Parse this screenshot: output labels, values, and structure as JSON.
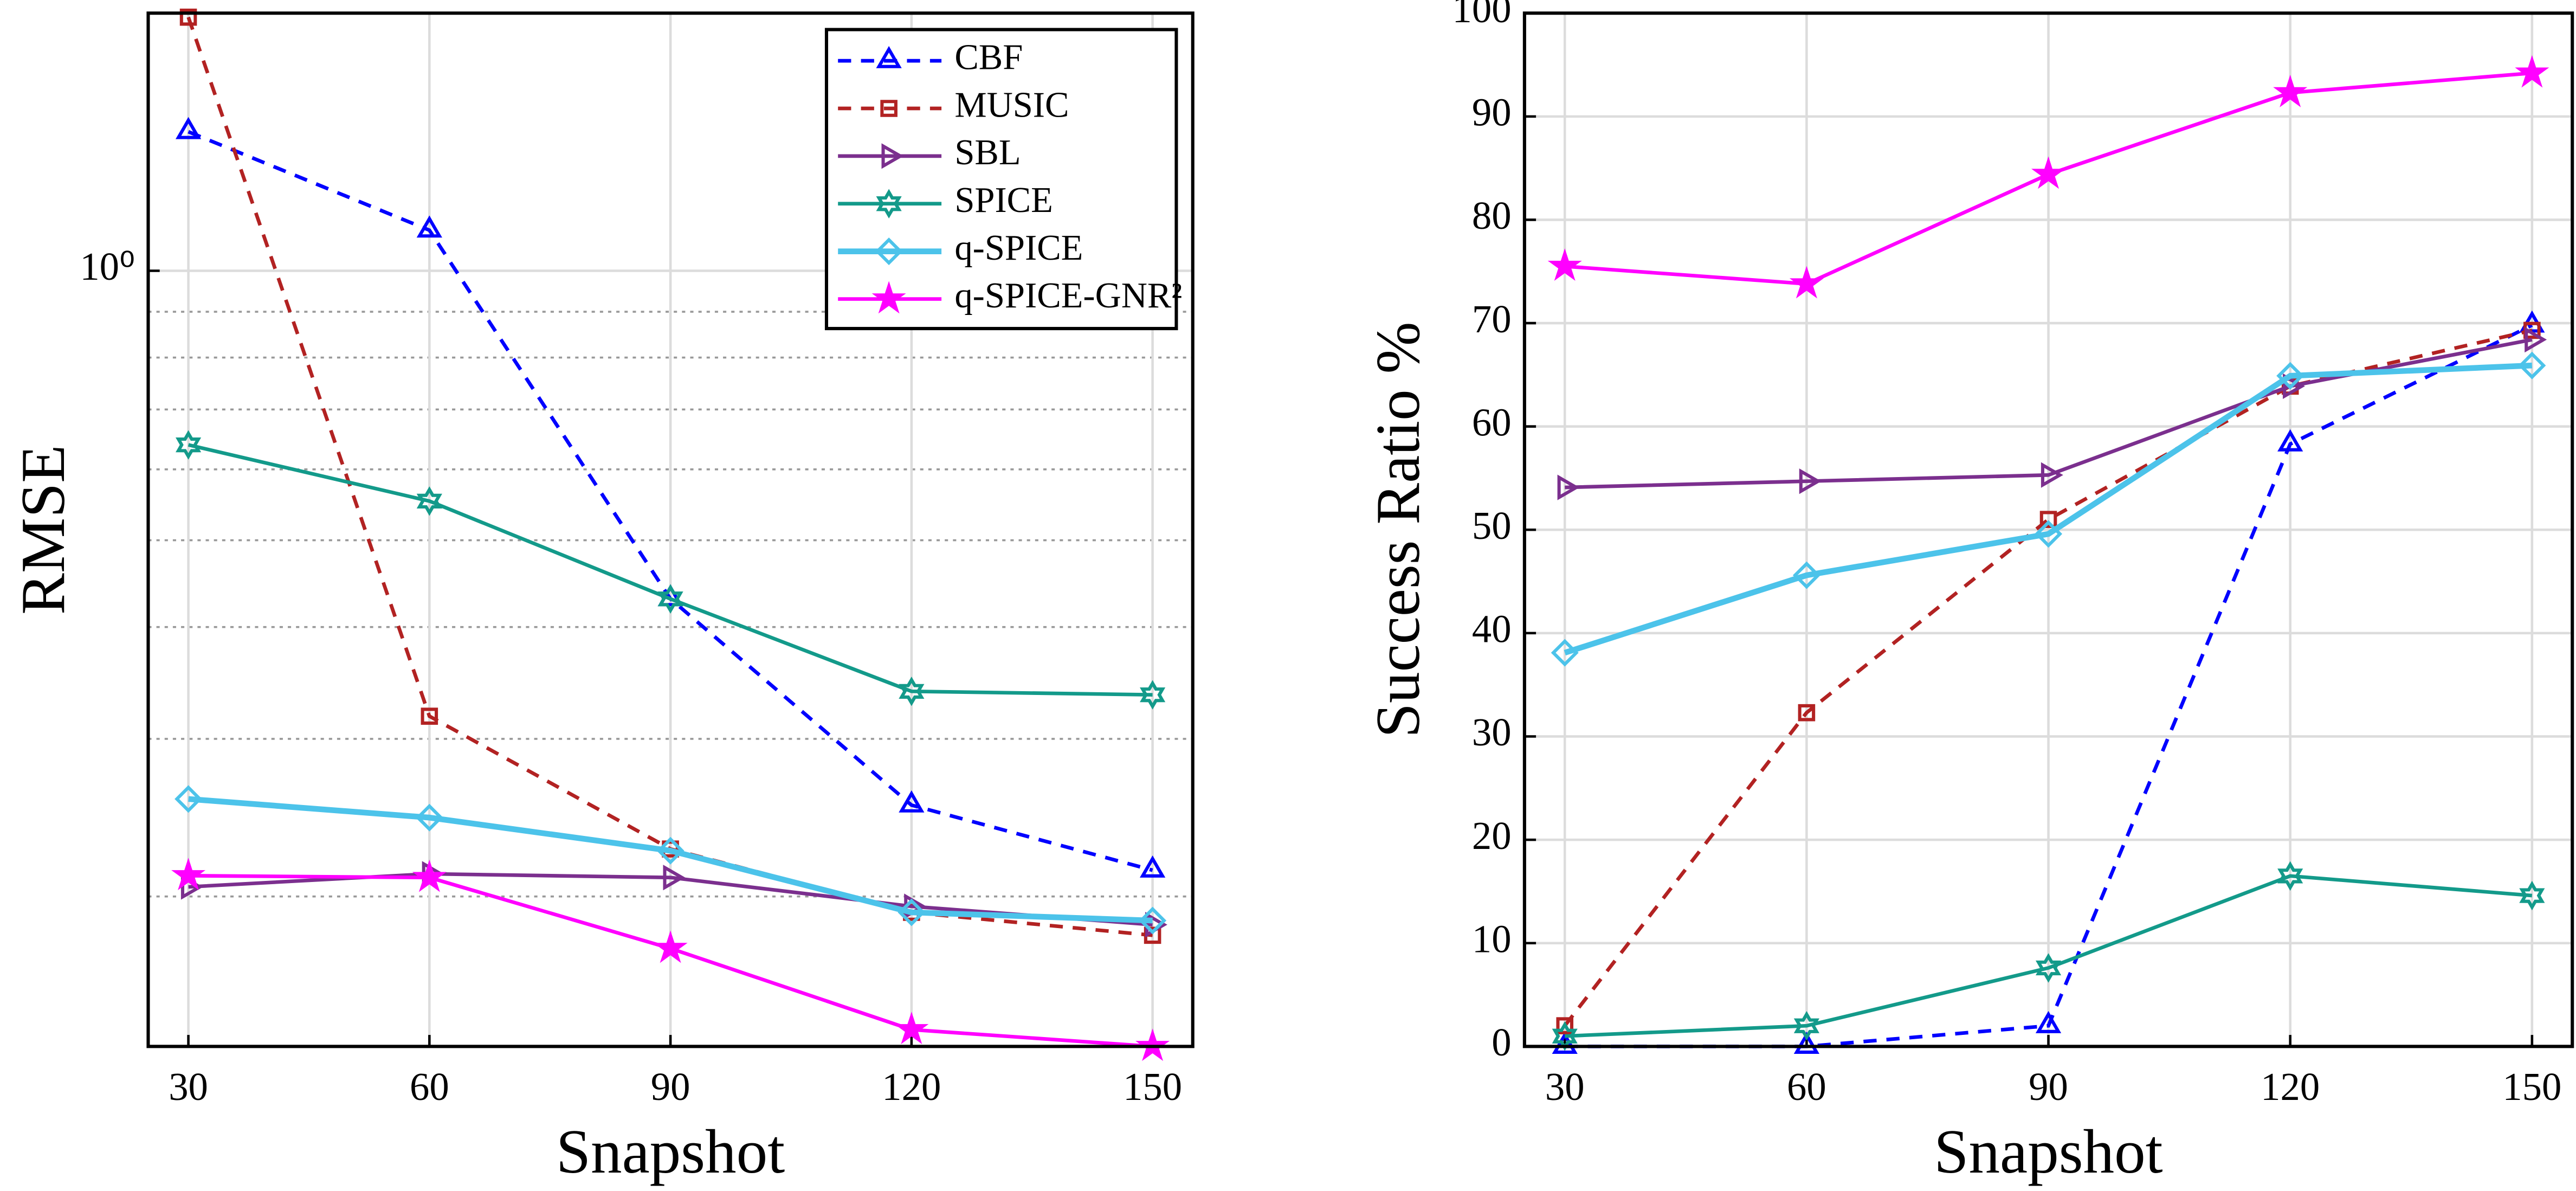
{
  "chart_data": [
    {
      "type": "line",
      "xlabel": "Snapshot",
      "ylabel": "RMSE",
      "yscale": "log",
      "grid": true,
      "legend": "upper right",
      "x": [
        30,
        60,
        90,
        120,
        150
      ],
      "xlim": [
        25,
        155
      ],
      "xticks": [
        30,
        60,
        90,
        120,
        150
      ],
      "ylim": [
        0.136,
        1.94
      ],
      "yticks": [
        {
          "value": 1,
          "label": "10⁰"
        }
      ],
      "yminorticks": [
        0.2,
        0.3,
        0.4,
        0.5,
        0.6,
        0.7,
        0.8,
        0.9
      ],
      "series": [
        {
          "name": "CBF",
          "color": "#0000ff",
          "dash": true,
          "marker": "triangle",
          "values": [
            1.43,
            1.11,
            0.43,
            0.253,
            0.214
          ]
        },
        {
          "name": "MUSIC",
          "color": "#b22222",
          "dash": true,
          "marker": "square",
          "values": [
            1.92,
            0.318,
            0.226,
            0.192,
            0.181
          ]
        },
        {
          "name": "SBL",
          "color": "#7b2f8e",
          "dash": false,
          "marker": "triangle-right",
          "values": [
            0.205,
            0.212,
            0.21,
            0.195,
            0.186
          ]
        },
        {
          "name": "SPICE",
          "color": "#139a8a",
          "dash": false,
          "marker": "hexagram",
          "values": [
            0.639,
            0.553,
            0.43,
            0.339,
            0.336
          ]
        },
        {
          "name": "q-SPICE",
          "color": "#4cc3ea",
          "dash": false,
          "marker": "diamond",
          "values": [
            0.257,
            0.245,
            0.225,
            0.192,
            0.188
          ]
        },
        {
          "name": "q-SPICE-GNR²",
          "color": "#ff00ff",
          "dash": false,
          "marker": "pentagram",
          "values": [
            0.211,
            0.21,
            0.175,
            0.142,
            0.136
          ]
        }
      ]
    },
    {
      "type": "line",
      "xlabel": "Snapshot",
      "ylabel": "Success Ratio %",
      "yscale": "linear",
      "grid": true,
      "x": [
        30,
        60,
        90,
        120,
        150
      ],
      "xlim": [
        25,
        155
      ],
      "xticks": [
        30,
        60,
        90,
        120,
        150
      ],
      "ylim": [
        0,
        100
      ],
      "yticks": [
        0,
        10,
        20,
        30,
        40,
        50,
        60,
        70,
        80,
        90,
        100
      ],
      "series": [
        {
          "color": "#0000ff",
          "dash": true,
          "marker": "triangle",
          "values": [
            0,
            0,
            2,
            58.3,
            69.8
          ]
        },
        {
          "color": "#b22222",
          "dash": true,
          "marker": "square",
          "values": [
            2,
            32.3,
            51,
            63.9,
            69.3
          ]
        },
        {
          "color": "#7b2f8e",
          "dash": false,
          "marker": "triangle-right",
          "values": [
            54.1,
            54.7,
            55.3,
            63.9,
            68.4
          ]
        },
        {
          "color": "#139a8a",
          "dash": false,
          "marker": "hexagram",
          "values": [
            1,
            2,
            7.6,
            16.5,
            14.6
          ]
        },
        {
          "color": "#4cc3ea",
          "dash": false,
          "marker": "diamond",
          "values": [
            38.1,
            45.6,
            49.6,
            64.9,
            65.9
          ]
        },
        {
          "color": "#ff00ff",
          "dash": false,
          "marker": "pentagram",
          "values": [
            75.5,
            73.8,
            84.4,
            92.3,
            94.2
          ]
        }
      ]
    }
  ]
}
